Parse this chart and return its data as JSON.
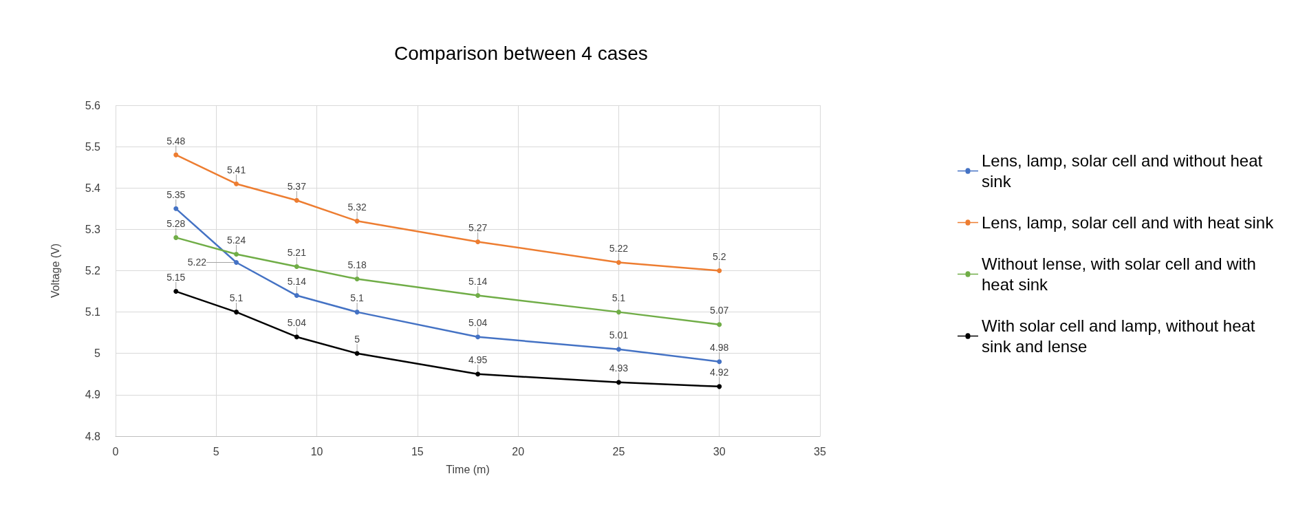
{
  "chart_data": {
    "type": "line",
    "title": "Comparison between 4 cases",
    "xlabel": "Time (m)",
    "ylabel": "Voltage (V)",
    "x": [
      3,
      6,
      9,
      12,
      18,
      25,
      30
    ],
    "series": [
      {
        "name": "Lens, lamp, solar cell and without heat sink",
        "color": "#4472c4",
        "values": [
          5.35,
          5.22,
          5.14,
          5.1,
          5.04,
          5.01,
          4.98
        ]
      },
      {
        "name": "Lens, lamp, solar cell and with heat sink",
        "color": "#ed7d31",
        "values": [
          5.48,
          5.41,
          5.37,
          5.32,
          5.27,
          5.22,
          5.2
        ]
      },
      {
        "name": "Without lense, with solar cell and with heat sink",
        "color": "#70ad47",
        "values": [
          5.28,
          5.24,
          5.21,
          5.18,
          5.14,
          5.1,
          5.07
        ]
      },
      {
        "name": "With solar cell and lamp, without heat sink and lense",
        "color": "#000000",
        "values": [
          5.15,
          5.1,
          5.04,
          5,
          4.95,
          4.93,
          4.92
        ]
      }
    ],
    "xlim": [
      0,
      35
    ],
    "xticks": [
      0,
      5,
      10,
      15,
      20,
      25,
      30,
      35
    ],
    "ylim": [
      4.8,
      5.6
    ],
    "yticks": [
      4.8,
      4.9,
      5,
      5.1,
      5.2,
      5.3,
      5.4,
      5.5,
      5.6
    ],
    "grid": true,
    "legend": "right",
    "marker": "circle",
    "line_style": "solid",
    "data_labels": true
  }
}
